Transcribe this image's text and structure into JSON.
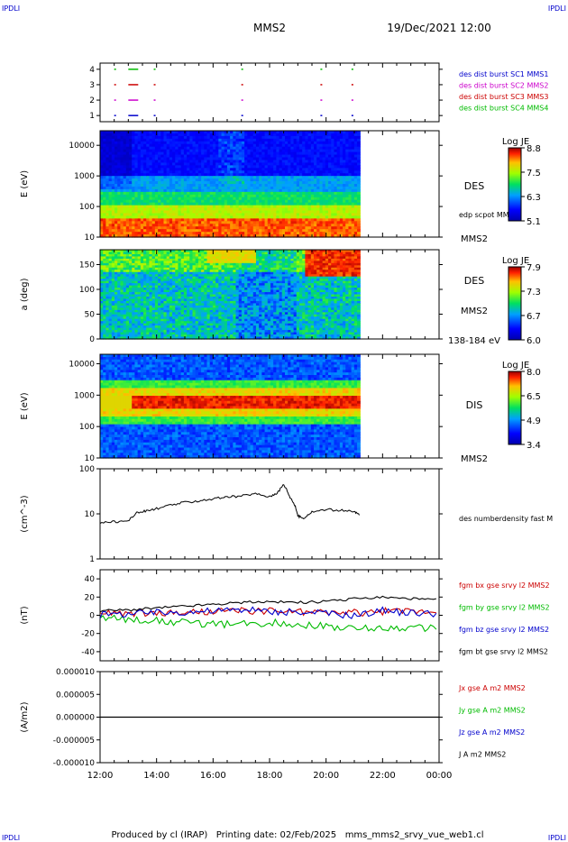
{
  "header": {
    "corner_tl": "IPDLI",
    "corner_tr": "IPDLI",
    "corner_bl": "IPDLI",
    "corner_br": "IPDLI",
    "title": "MMS2",
    "datetime": "19/Dec/2021 12:00"
  },
  "footer": {
    "text": "Produced by cl (IRAP)   Printing date: 02/Feb/2025   mms_mms2_srvy_vue_web1.cl"
  },
  "colors": {
    "blue": "#0000cc",
    "magenta": "#cc00cc",
    "red": "#cc0000",
    "green": "#00bb00",
    "black": "#000000"
  },
  "chart_data": [
    {
      "type": "scatter",
      "name": "burst-availability",
      "yticks": [
        "1",
        "2",
        "3",
        "4"
      ],
      "ylim": [
        0.6,
        4.4
      ],
      "legend": [
        {
          "label": "des dist burst SC1 MMS1",
          "color": "blue",
          "level": 1
        },
        {
          "label": "des dist burst SC2 MMS2",
          "color": "magenta",
          "level": 2
        },
        {
          "label": "des dist burst SC3 MMS3",
          "color": "red",
          "level": 3
        },
        {
          "label": "des dist burst SC4 MMS4",
          "color": "green",
          "level": 4
        }
      ],
      "segments_hours": [
        [
          12.5,
          12.55
        ],
        [
          13.0,
          13.35
        ],
        [
          13.9,
          13.95
        ],
        [
          17.0,
          17.05
        ],
        [
          19.8,
          19.85
        ],
        [
          20.9,
          20.95
        ]
      ]
    },
    {
      "type": "heatmap",
      "name": "des-energy-spectrogram",
      "ylabel": "E (eV)",
      "yscale": "log",
      "ylim": [
        10,
        30000
      ],
      "yticks": [
        "10",
        "100",
        "1000",
        "10000"
      ],
      "label_main": "DES",
      "label_sub": "MMS2",
      "overlay_label": "edp scpot MMS2",
      "colorbar": {
        "title": "Log JE",
        "ticks": [
          "8.8",
          "7.5",
          "6.3",
          "5.1"
        ]
      }
    },
    {
      "type": "heatmap",
      "name": "des-pitch-angle",
      "ylabel": "a (deg)",
      "ylim": [
        0,
        180
      ],
      "yticks": [
        "0",
        "50",
        "100",
        "150"
      ],
      "label_main": "DES",
      "label_sub": "MMS2",
      "energy_label": "138-184 eV",
      "colorbar": {
        "title": "Log JE",
        "ticks": [
          "7.9",
          "7.3",
          "6.7",
          "6.0"
        ]
      }
    },
    {
      "type": "heatmap",
      "name": "dis-energy-spectrogram",
      "ylabel": "E (eV)",
      "yscale": "log",
      "ylim": [
        10,
        20000
      ],
      "yticks": [
        "10",
        "100",
        "1000",
        "10000"
      ],
      "label_main": "DIS",
      "label_sub": "MMS2",
      "colorbar": {
        "title": "Log JE",
        "ticks": [
          "8.0",
          "6.5",
          "4.9",
          "3.4"
        ]
      }
    },
    {
      "type": "line",
      "name": "density",
      "ylabel": "(cm^-3)",
      "yscale": "log",
      "ylim": [
        1,
        100
      ],
      "yticks": [
        "1",
        "10",
        "100"
      ],
      "legend": [
        {
          "label": "des numberdensity fast M",
          "color": "black"
        }
      ],
      "x_hours": [
        12.0,
        12.5,
        13.0,
        13.3,
        13.6,
        14.0,
        14.5,
        15.0,
        15.5,
        16.0,
        16.5,
        17.0,
        17.5,
        18.0,
        18.3,
        18.5,
        18.7,
        18.9,
        19.0,
        19.2,
        19.5,
        20.0,
        20.5,
        21.0,
        21.2
      ],
      "y_values": [
        6.5,
        6.7,
        7.0,
        10.5,
        11.5,
        13.0,
        15.5,
        18.0,
        19.5,
        21.5,
        23.5,
        25.0,
        28.0,
        24.0,
        30.0,
        45.0,
        25.0,
        15.0,
        9.0,
        8.0,
        11.0,
        12.5,
        12.0,
        11.0,
        9.5
      ]
    },
    {
      "type": "line",
      "name": "magnetic-field",
      "ylabel": "(nT)",
      "ylim": [
        -50,
        50
      ],
      "yticks": [
        "-40",
        "-20",
        "0",
        "20",
        "40"
      ],
      "legend": [
        {
          "label": "fgm bx gse srvy l2 MMS2",
          "color": "red"
        },
        {
          "label": "fgm by gse srvy l2 MMS2",
          "color": "green"
        },
        {
          "label": "fgm bz gse srvy l2 MMS2",
          "color": "blue"
        },
        {
          "label": "fgm bt gse srvy l2 MMS2",
          "color": "black"
        }
      ],
      "x_hours": [
        12.0,
        13.0,
        14.0,
        15.0,
        16.0,
        17.0,
        18.0,
        19.0,
        20.0,
        21.0,
        22.0,
        23.0,
        24.0
      ],
      "series": [
        {
          "name": "fgm bx gse srvy l2 MMS2",
          "values": [
            3,
            2,
            2,
            3,
            4,
            5,
            5,
            4,
            3,
            3,
            4,
            5,
            5
          ]
        },
        {
          "name": "fgm by gse srvy l2 MMS2",
          "values": [
            -3,
            -4,
            -6,
            -8,
            -10,
            -10,
            -8,
            -10,
            -12,
            -15,
            -14,
            -14,
            -14
          ]
        },
        {
          "name": "fgm bz gse srvy l2 MMS2",
          "values": [
            0,
            2,
            3,
            4,
            5,
            6,
            4,
            3,
            2,
            0,
            5,
            3,
            2
          ]
        },
        {
          "name": "fgm bt gse srvy l2 MMS2",
          "values": [
            5,
            6,
            8,
            10,
            12,
            14,
            15,
            14,
            15,
            18,
            20,
            18,
            17
          ]
        }
      ]
    },
    {
      "type": "line",
      "name": "current-density",
      "ylabel": "(A/m2)",
      "ylim": [
        -1e-05,
        1e-05
      ],
      "yticks": [
        "-0.000010",
        "-0.000005",
        "0.000000",
        "0.000005",
        "0.000010"
      ],
      "legend": [
        {
          "label": "Jx gse A m2 MMS2",
          "color": "red"
        },
        {
          "label": "Jy gse A m2 MMS2",
          "color": "green"
        },
        {
          "label": "Jz gse A m2 MMS2",
          "color": "blue"
        },
        {
          "label": "J A m2 MMS2",
          "color": "black"
        }
      ],
      "x_hours": [
        12.0,
        24.0
      ],
      "series": [
        {
          "name": "J A m2 MMS2",
          "values": [
            0,
            0
          ]
        }
      ]
    }
  ],
  "xaxis": {
    "range_hours": [
      12,
      24
    ],
    "ticks": [
      {
        "hour": 12,
        "label": "12:00"
      },
      {
        "hour": 14,
        "label": "14:00"
      },
      {
        "hour": 16,
        "label": "16:00"
      },
      {
        "hour": 18,
        "label": "18:00"
      },
      {
        "hour": 20,
        "label": "20:00"
      },
      {
        "hour": 22,
        "label": "22:00"
      },
      {
        "hour": 24,
        "label": "00:00"
      }
    ],
    "data_end_hour": 21.2
  }
}
